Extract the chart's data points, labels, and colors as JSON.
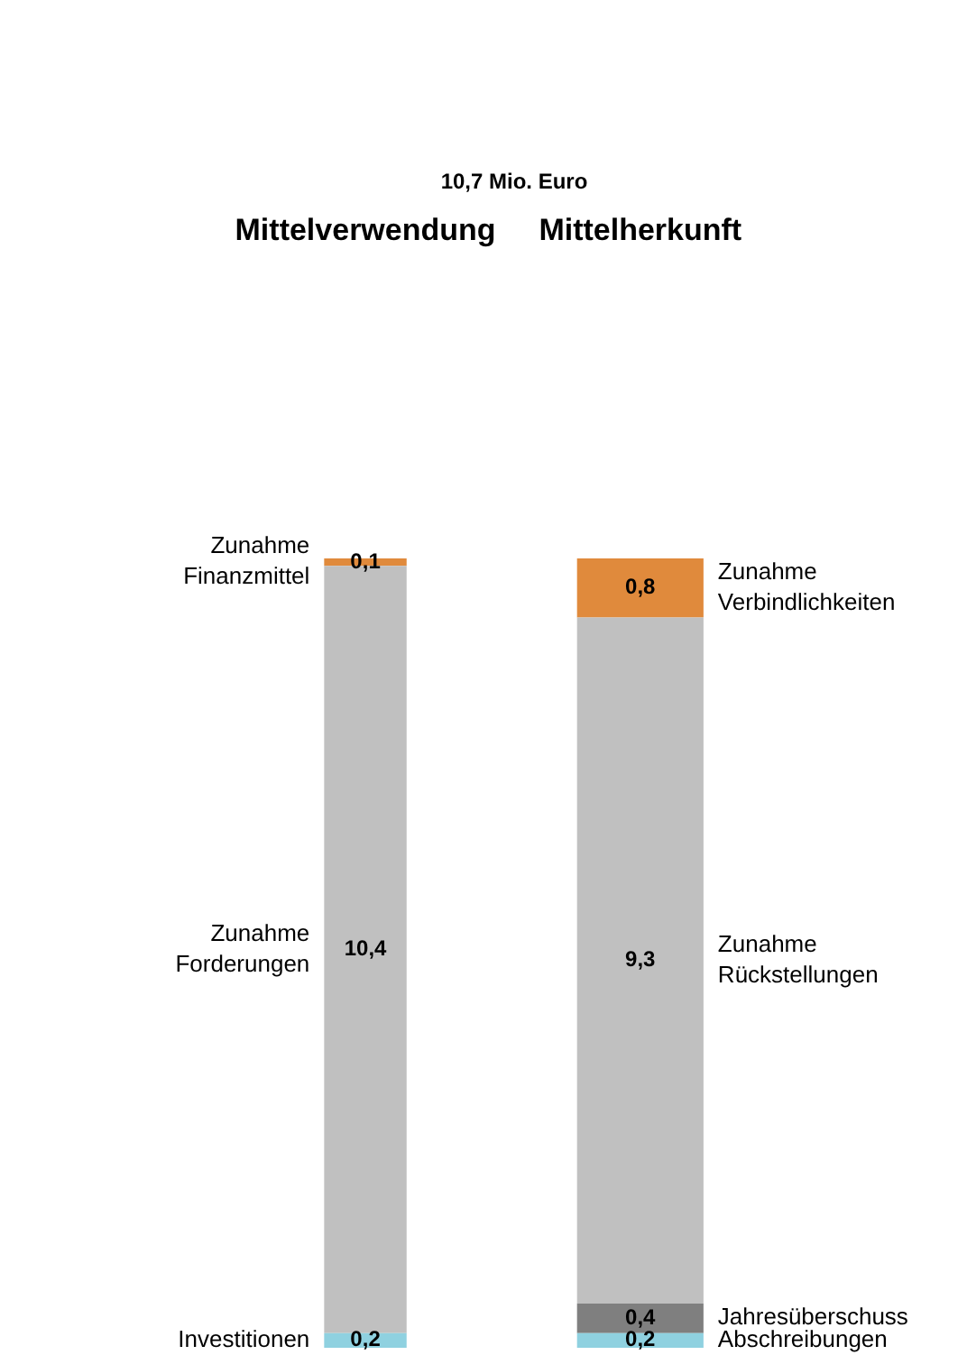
{
  "chart_data": {
    "type": "bar",
    "title": "10,7 Mio. Euro",
    "categories": [
      "Mittelverwendung",
      "Mittelherkunft"
    ],
    "stacked": true,
    "tick_labels": "x",
    "series": [
      {
        "name": "Investitionen",
        "color": "#8fd1e0",
        "values": [
          0.2,
          null
        ],
        "value_labels": [
          "0,2",
          null
        ]
      },
      {
        "name": "Zunahme Forderungen",
        "color": "#c0c0c0",
        "values": [
          10.4,
          null
        ],
        "value_labels": [
          "10,4",
          null
        ]
      },
      {
        "name": "Zunahme Finanzmittel",
        "color": "#e08a3c",
        "values": [
          0.1,
          null
        ],
        "value_labels": [
          "0,1",
          null
        ]
      },
      {
        "name": "Abschreibungen",
        "color": "#8fd1e0",
        "values": [
          null,
          0.2
        ],
        "value_labels": [
          null,
          "0,2"
        ]
      },
      {
        "name": "Jahresüberschuss",
        "color": "#7f7f7f",
        "values": [
          null,
          0.4
        ],
        "value_labels": [
          null,
          "0,4"
        ]
      },
      {
        "name": "Zunahme Rückstellungen",
        "color": "#c0c0c0",
        "values": [
          null,
          9.3
        ],
        "value_labels": [
          null,
          "9,3"
        ]
      },
      {
        "name": "Zunahme Verbindlichkeiten",
        "color": "#e08a3c",
        "values": [
          null,
          0.8
        ],
        "value_labels": [
          null,
          "0,8"
        ]
      }
    ]
  }
}
